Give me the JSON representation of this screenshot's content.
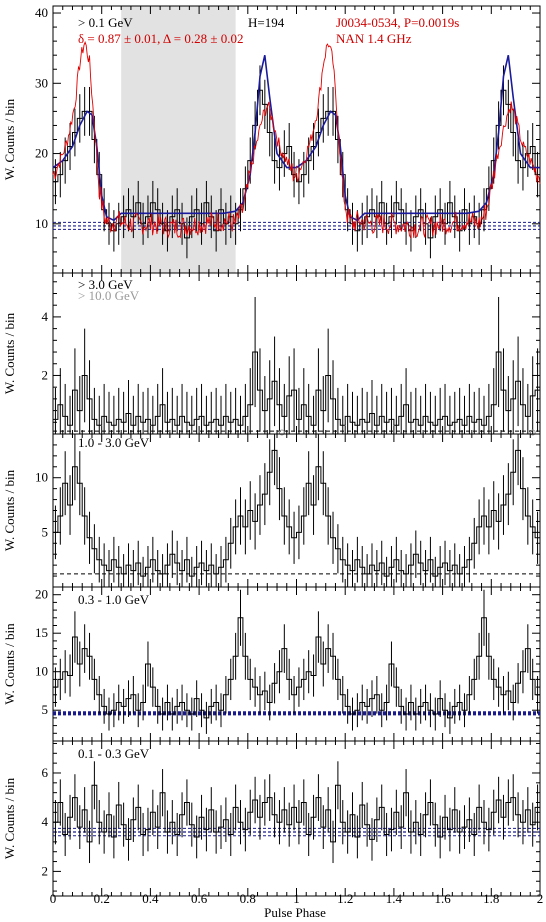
{
  "figure": {
    "xlabel": "Pulse Phase",
    "ylabel": "W. Counts / bin",
    "x_ticks": [
      "0",
      "0.2",
      "0.4",
      "0.6",
      "0.8",
      "1",
      "1.2",
      "1.4",
      "1.6",
      "1.8",
      "2"
    ]
  },
  "chart_data": [
    {
      "type": "line",
      "panel": "top",
      "energy_label": "> 0.1 GeV",
      "stats_label": "H=194",
      "shape_params": "δ = 0.87 ± 0.01, Δ = 0.28 ± 0.02",
      "pulsar_label": "J0034-0534, P=0.0019s",
      "radio_label": "NAN 1.4 GHz",
      "xlim": [
        0,
        2
      ],
      "ylim": [
        3,
        41
      ],
      "y_ticks": [
        10,
        20,
        30,
        40
      ],
      "offpulse_region": [
        0.28,
        0.75
      ],
      "background_level": 9.7,
      "background_band": [
        9.2,
        10.2
      ],
      "series": [
        {
          "style": "gamma histogram with error bars",
          "x": [
            0.0,
            0.02,
            0.04,
            0.06,
            0.08,
            0.1,
            0.12,
            0.14,
            0.16,
            0.18,
            0.2,
            0.22,
            0.24,
            0.26,
            0.28,
            0.3,
            0.32,
            0.34,
            0.36,
            0.38,
            0.4,
            0.42,
            0.44,
            0.46,
            0.48,
            0.5,
            0.52,
            0.54,
            0.56,
            0.58,
            0.6,
            0.62,
            0.64,
            0.66,
            0.68,
            0.7,
            0.72,
            0.74,
            0.76,
            0.78,
            0.8,
            0.82,
            0.84,
            0.86,
            0.88,
            0.9,
            0.92,
            0.94,
            0.96,
            0.98
          ],
          "y": [
            16,
            17,
            19,
            21,
            23,
            25,
            26,
            26,
            22,
            17,
            12,
            10,
            9,
            10,
            11,
            12,
            11,
            13,
            10,
            11,
            13,
            12,
            10,
            9,
            11,
            12,
            10,
            8,
            11,
            12,
            10,
            13,
            11,
            9,
            12,
            10,
            11,
            10,
            12,
            15,
            19,
            24,
            29,
            27,
            23,
            19,
            18,
            20,
            21,
            17
          ]
        },
        {
          "style": "fitted gamma profile (blue)",
          "x": [
            0.0,
            0.04,
            0.08,
            0.11,
            0.14,
            0.16,
            0.18,
            0.2,
            0.22,
            0.25,
            0.28,
            0.4,
            0.5,
            0.6,
            0.7,
            0.75,
            0.78,
            0.81,
            0.83,
            0.85,
            0.87,
            0.89,
            0.92,
            0.96,
            1.0
          ],
          "y": [
            18,
            19,
            21,
            24,
            26,
            25.5,
            21,
            14,
            11,
            10.5,
            11.5,
            11.5,
            11.5,
            11.5,
            11.5,
            11.8,
            13,
            17,
            23,
            31,
            34,
            28,
            20,
            18,
            18
          ]
        },
        {
          "style": "radio profile (red)",
          "x": [
            0.0,
            0.03,
            0.06,
            0.09,
            0.11,
            0.13,
            0.15,
            0.17,
            0.19,
            0.21,
            0.23,
            0.26,
            0.3,
            0.4,
            0.5,
            0.6,
            0.7,
            0.75,
            0.78,
            0.8,
            0.82,
            0.84,
            0.86,
            0.88,
            0.9,
            0.93,
            0.96,
            0.99
          ],
          "y": [
            17,
            19,
            22,
            27,
            33,
            36,
            33,
            24,
            15,
            11,
            10,
            10.5,
            10,
            10,
            9.5,
            10,
            10.5,
            10,
            12,
            15,
            19,
            22,
            25,
            27,
            25,
            21,
            19,
            17
          ]
        }
      ]
    },
    {
      "type": "bar",
      "panel": "2",
      "energy_label": "> 3.0 GeV",
      "energy_label_secondary": "> 10.0 GeV",
      "xlim": [
        0,
        2
      ],
      "ylim": [
        0,
        5.5
      ],
      "y_ticks": [
        2,
        4
      ],
      "background_level": 0.1,
      "x": [
        0.0,
        0.02,
        0.04,
        0.06,
        0.08,
        0.1,
        0.12,
        0.14,
        0.16,
        0.18,
        0.2,
        0.22,
        0.24,
        0.26,
        0.28,
        0.3,
        0.32,
        0.34,
        0.36,
        0.38,
        0.4,
        0.42,
        0.44,
        0.46,
        0.48,
        0.5,
        0.52,
        0.54,
        0.56,
        0.58,
        0.6,
        0.62,
        0.64,
        0.66,
        0.68,
        0.7,
        0.72,
        0.74,
        0.76,
        0.78,
        0.8,
        0.82,
        0.84,
        0.86,
        0.88,
        0.9,
        0.92,
        0.94,
        0.96,
        0.98
      ],
      "values": [
        0.5,
        1.0,
        0.6,
        0.3,
        1.5,
        0.8,
        2.0,
        1.2,
        0.5,
        0.3,
        0.6,
        0.4,
        0.3,
        0.5,
        0.4,
        0.7,
        0.3,
        0.6,
        0.4,
        0.5,
        0.3,
        0.6,
        1.0,
        0.4,
        0.5,
        0.3,
        0.6,
        0.4,
        0.3,
        0.5,
        0.6,
        0.3,
        0.4,
        0.5,
        0.3,
        0.6,
        0.4,
        0.5,
        0.3,
        0.6,
        1.0,
        2.8,
        1.5,
        0.8,
        1.2,
        1.8,
        1.0,
        0.6,
        1.3,
        1.5
      ]
    },
    {
      "type": "bar",
      "panel": "3",
      "energy_label": "1.0 - 3.0 GeV",
      "xlim": [
        0,
        2
      ],
      "ylim": [
        0,
        14
      ],
      "y_ticks": [
        5,
        10
      ],
      "background_level": 1.2,
      "x": [
        0.0,
        0.02,
        0.04,
        0.06,
        0.08,
        0.1,
        0.12,
        0.14,
        0.16,
        0.18,
        0.2,
        0.22,
        0.24,
        0.26,
        0.28,
        0.3,
        0.32,
        0.34,
        0.36,
        0.38,
        0.4,
        0.42,
        0.44,
        0.46,
        0.48,
        0.5,
        0.52,
        0.54,
        0.56,
        0.58,
        0.6,
        0.62,
        0.64,
        0.66,
        0.68,
        0.7,
        0.72,
        0.74,
        0.76,
        0.78,
        0.8,
        0.82,
        0.84,
        0.86,
        0.88,
        0.9,
        0.92,
        0.94,
        0.96,
        0.98
      ],
      "values": [
        5.0,
        6.5,
        9.5,
        7.5,
        11.0,
        9.5,
        6.5,
        4.5,
        3.5,
        2.5,
        2.0,
        1.5,
        2.5,
        1.8,
        1.2,
        2.0,
        1.5,
        2.2,
        1.0,
        1.8,
        2.5,
        1.5,
        1.2,
        2.0,
        3.0,
        2.2,
        1.5,
        2.5,
        1.0,
        1.8,
        2.2,
        1.5,
        2.0,
        1.2,
        1.8,
        2.5,
        4.0,
        5.5,
        6.5,
        5.5,
        7.0,
        6.0,
        7.5,
        8.5,
        10.5,
        12.5,
        9.0,
        6.5,
        5.5,
        4.5
      ]
    },
    {
      "type": "bar",
      "panel": "4",
      "energy_label": "0.3 - 1.0 GeV",
      "xlim": [
        0,
        2
      ],
      "ylim": [
        1,
        21
      ],
      "y_ticks": [
        5,
        10,
        15,
        20
      ],
      "background_level": 4.6,
      "background_band": [
        4.4,
        4.8
      ],
      "x": [
        0.0,
        0.02,
        0.04,
        0.06,
        0.08,
        0.1,
        0.12,
        0.14,
        0.16,
        0.18,
        0.2,
        0.22,
        0.24,
        0.26,
        0.28,
        0.3,
        0.32,
        0.34,
        0.36,
        0.38,
        0.4,
        0.42,
        0.44,
        0.46,
        0.48,
        0.5,
        0.52,
        0.54,
        0.56,
        0.58,
        0.6,
        0.62,
        0.64,
        0.66,
        0.68,
        0.7,
        0.72,
        0.74,
        0.76,
        0.78,
        0.8,
        0.82,
        0.84,
        0.86,
        0.88,
        0.9,
        0.92,
        0.94,
        0.96,
        0.98
      ],
      "values": [
        8.0,
        9.0,
        10.0,
        9.5,
        14.5,
        11.0,
        13.0,
        12.0,
        9.0,
        7.0,
        5.5,
        4.5,
        5.0,
        6.0,
        5.5,
        6.5,
        7.0,
        5.0,
        6.0,
        11.0,
        8.0,
        5.5,
        4.5,
        6.0,
        4.5,
        5.5,
        6.0,
        5.0,
        4.5,
        6.5,
        5.0,
        4.0,
        5.5,
        6.0,
        5.0,
        7.0,
        9.0,
        12.0,
        17.0,
        12.0,
        9.0,
        8.0,
        7.0,
        7.5,
        6.0,
        8.5,
        10.0,
        13.0,
        9.0,
        7.0
      ]
    },
    {
      "type": "bar",
      "panel": "5",
      "energy_label": "0.1 - 0.3 GeV",
      "xlim": [
        0,
        2
      ],
      "ylim": [
        1,
        7.3
      ],
      "y_ticks": [
        2,
        4,
        6
      ],
      "background_level": 3.6,
      "background_band": [
        3.45,
        3.75
      ],
      "x": [
        0.0,
        0.02,
        0.04,
        0.06,
        0.08,
        0.1,
        0.12,
        0.14,
        0.16,
        0.18,
        0.2,
        0.22,
        0.24,
        0.26,
        0.28,
        0.3,
        0.32,
        0.34,
        0.36,
        0.38,
        0.4,
        0.42,
        0.44,
        0.46,
        0.48,
        0.5,
        0.52,
        0.54,
        0.56,
        0.58,
        0.6,
        0.62,
        0.64,
        0.66,
        0.68,
        0.7,
        0.72,
        0.74,
        0.76,
        0.78,
        0.8,
        0.82,
        0.84,
        0.86,
        0.88,
        0.9,
        0.92,
        0.94,
        0.96,
        0.98
      ],
      "values": [
        4.0,
        4.8,
        3.5,
        4.2,
        5.0,
        3.8,
        4.5,
        3.2,
        5.5,
        4.0,
        3.6,
        4.3,
        3.4,
        4.7,
        3.9,
        3.3,
        4.1,
        4.6,
        3.5,
        3.7,
        4.4,
        3.8,
        5.2,
        3.6,
        4.0,
        3.5,
        4.3,
        4.8,
        3.9,
        3.4,
        4.2,
        3.7,
        4.5,
        3.6,
        3.8,
        4.1,
        3.5,
        4.6,
        4.0,
        3.7,
        4.4,
        4.9,
        4.2,
        4.8,
        5.0,
        4.3,
        4.0,
        4.5,
        3.9,
        4.6
      ]
    }
  ]
}
